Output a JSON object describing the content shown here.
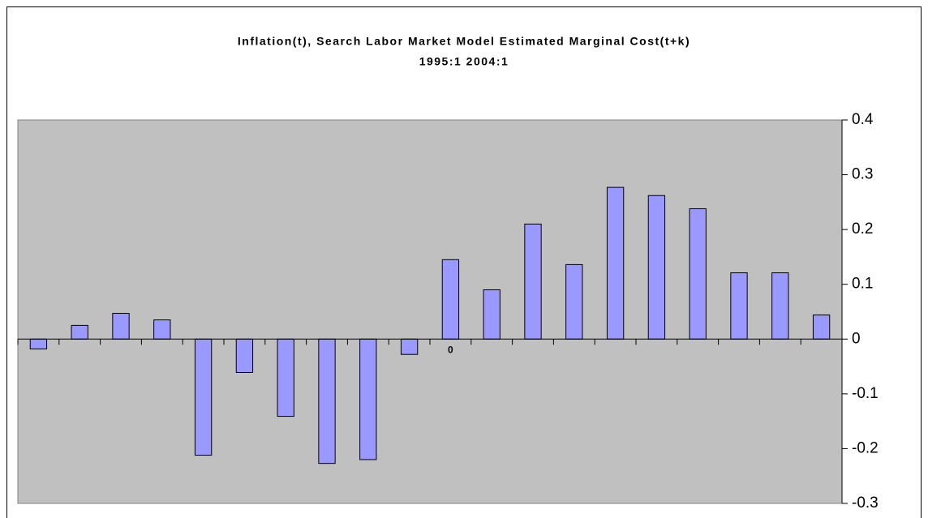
{
  "chart_data": {
    "type": "bar",
    "title": "Inflation(t), Search Labor Market Model Estimated Marginal Cost(t+k)",
    "subtitle": "1995:1 2004:1",
    "categories": [
      null,
      null,
      null,
      null,
      null,
      null,
      null,
      null,
      null,
      null,
      "0",
      null,
      null,
      null,
      null,
      null,
      null,
      null,
      null,
      null
    ],
    "values": [
      -0.018,
      0.025,
      0.047,
      0.035,
      -0.212,
      -0.061,
      -0.141,
      -0.227,
      -0.22,
      -0.028,
      0.145,
      0.09,
      0.21,
      0.136,
      0.277,
      0.262,
      0.238,
      0.121,
      0.121,
      0.044
    ],
    "color": "#9999ff",
    "ylim": [
      -0.3,
      0.4
    ],
    "yticks": [
      -0.3,
      -0.2,
      -0.1,
      0,
      0.1,
      0.2,
      0.3,
      0.4
    ]
  }
}
